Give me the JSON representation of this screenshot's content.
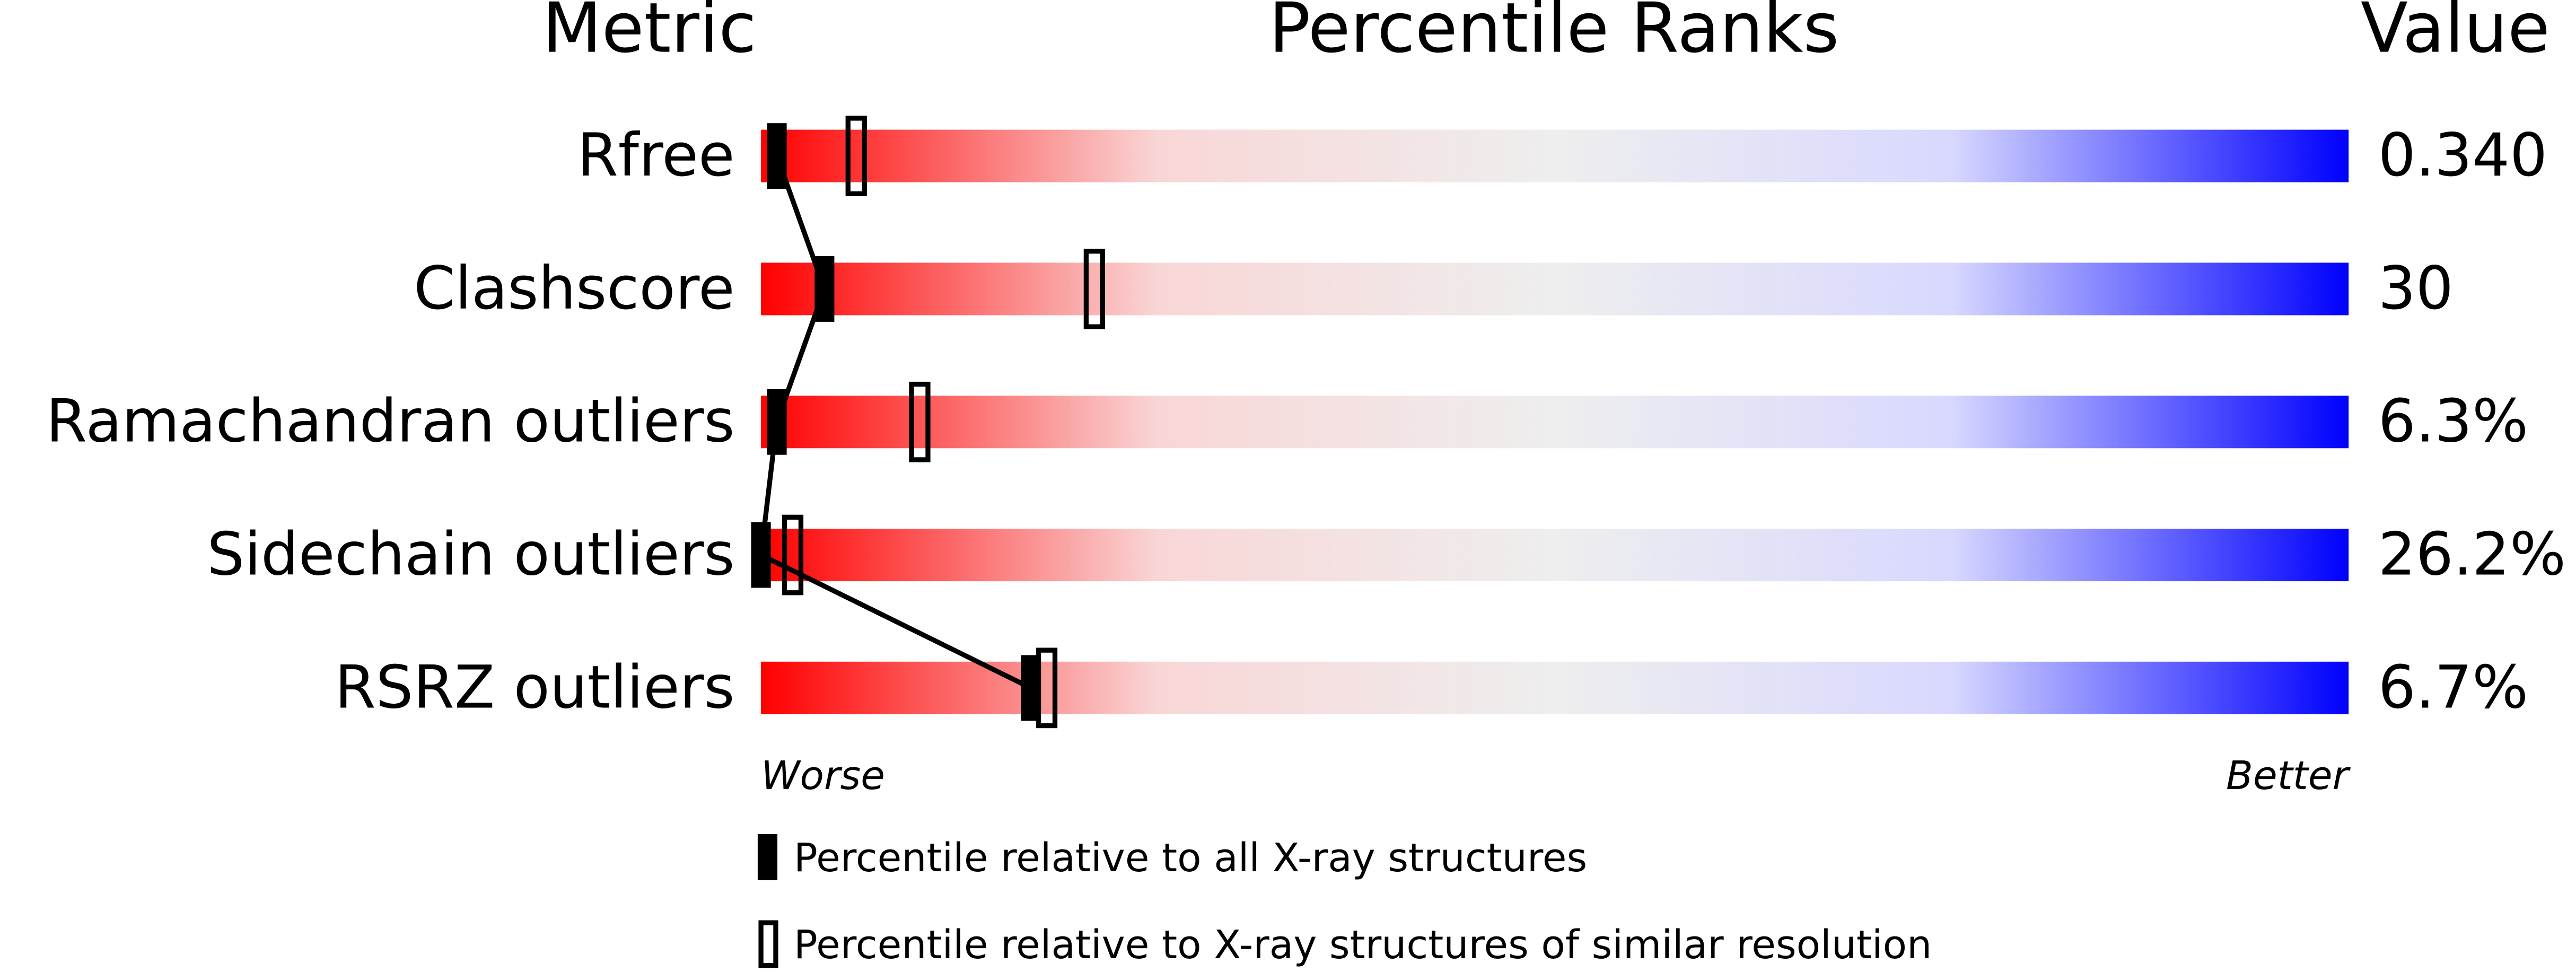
{
  "chart_data": {
    "type": "percentile",
    "title": "Percentile Ranks",
    "metric_header": "Metric",
    "value_header": "Value",
    "categories": [
      "Rfree",
      "Clashscore",
      "Ramachandran outliers",
      "Sidechain outliers",
      "RSRZ outliers"
    ],
    "metric_values": [
      "0.340",
      "30",
      "6.3%",
      "26.2%",
      "6.7%"
    ],
    "series": [
      {
        "name": "Percentile relative to all X-ray structures",
        "color": "#000000",
        "style": "filled",
        "values": [
          1,
          4,
          1,
          0,
          17
        ]
      },
      {
        "name": "Percentile relative to X-ray structures of similar resolution",
        "color": "#000000",
        "style": "open",
        "values": [
          6,
          21,
          10,
          2,
          18
        ]
      }
    ],
    "xlim": [
      0,
      100
    ],
    "x_start_label": "Worse",
    "x_end_label": "Better",
    "gradient": [
      "#ff0000",
      "#f9d6d6",
      "#eeeeee",
      "#d8d8ff",
      "#0000ff"
    ]
  }
}
